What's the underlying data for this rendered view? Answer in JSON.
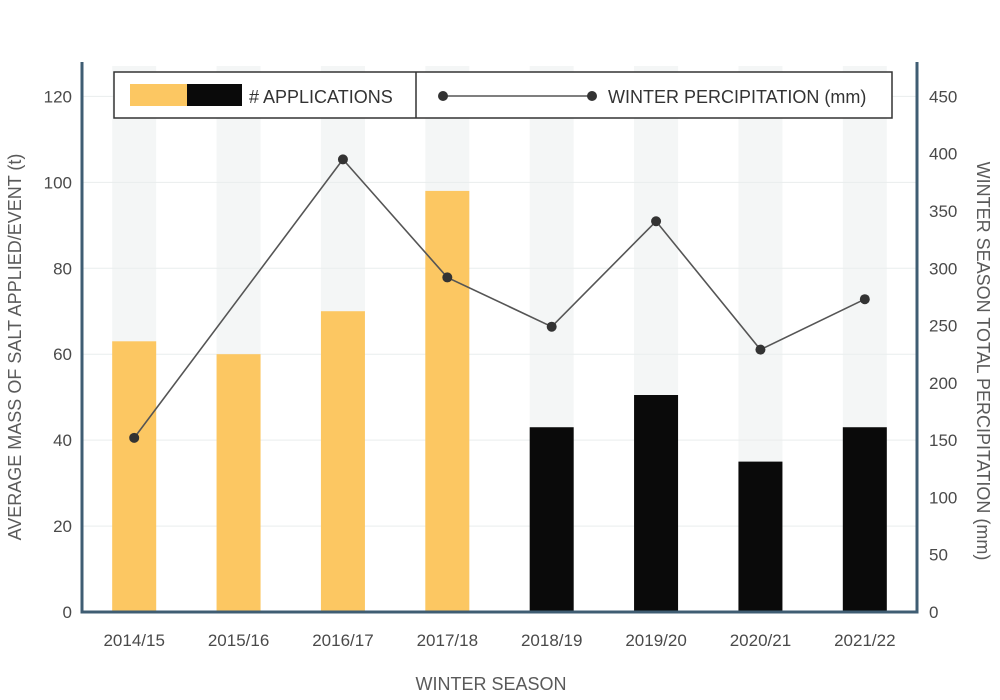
{
  "chart_data": {
    "type": "bar",
    "categories": [
      "2014/15",
      "2015/16",
      "2016/17",
      "2017/18",
      "2018/19",
      "2019/20",
      "2020/21",
      "2021/22"
    ],
    "series": [
      {
        "name": "# APPLICATIONS",
        "type": "bar",
        "axis": "left",
        "values": [
          63,
          60,
          70,
          98,
          43,
          50.5,
          35,
          43
        ],
        "colors": [
          "#fcc762",
          "#fcc762",
          "#fcc762",
          "#fcc762",
          "#0a0a0a",
          "#0a0a0a",
          "#0a0a0a",
          "#0a0a0a"
        ]
      },
      {
        "name": "WINTER PERCIPITATION (mm)",
        "type": "line",
        "axis": "right",
        "values": [
          152,
          null,
          395,
          292,
          249,
          341,
          229,
          273
        ],
        "color": "#555555"
      }
    ],
    "xlabel": "WINTER SEASON",
    "ylabel_left": "AVERAGE MASS OF SALT APPLIED/EVENT (t)",
    "ylabel_right": "WINTER SEASON TOTAL PERCIPITATION (mm)",
    "ylim_left": [
      0,
      128
    ],
    "ylim_right": [
      0,
      480
    ],
    "yticks_left": [
      "0",
      "20",
      "40",
      "60",
      "80",
      "100",
      "120"
    ],
    "yticks_right": [
      "0",
      "50",
      "100",
      "150",
      "200",
      "250",
      "300",
      "350",
      "400",
      "450"
    ],
    "grid": true,
    "legend_position": "top",
    "colors": {
      "bar_a": "#fcc762",
      "bar_b": "#0a0a0a",
      "line": "#555555",
      "axis": "#3f5d73",
      "background_column": "#f4f6f6"
    }
  }
}
